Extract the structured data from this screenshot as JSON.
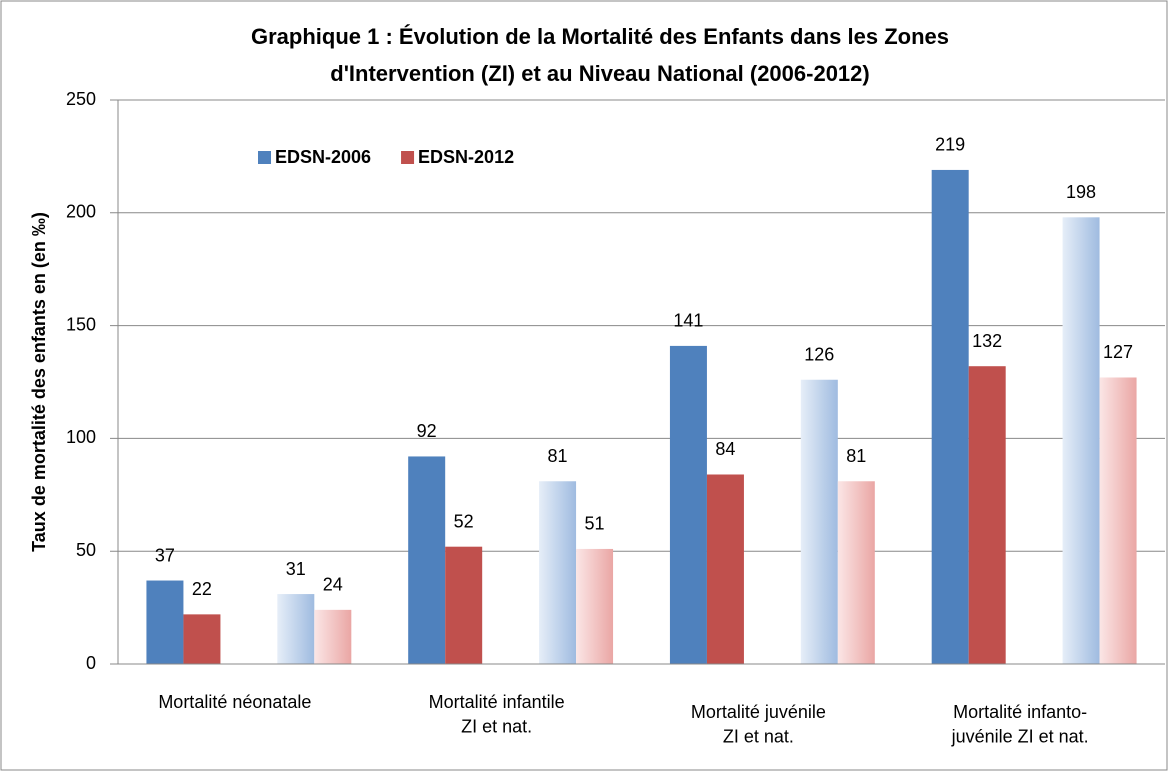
{
  "chart_data": {
    "type": "bar",
    "title": [
      "Graphique 1 : Évolution de la Mortalité des Enfants dans les Zones",
      "d'Intervention (ZI) et au Niveau National (2006-2012)"
    ],
    "y_label": "Taux de mortalité des enfants en (en ‰)",
    "categories": [
      "Mortalité néonatale",
      null,
      "Mortalité infantile\nZI et nat.",
      null,
      "Mortalité juvénile\nZI et nat.",
      null,
      "Mortalité infanto-\njuvénile ZI et nat.",
      null
    ],
    "series": [
      {
        "name": "EDSN-2006",
        "color": "#4f81bd",
        "values": [
          37,
          31,
          92,
          81,
          141,
          126,
          219,
          198
        ]
      },
      {
        "name": "EDSN-2012",
        "color": "#c0504d",
        "values": [
          22,
          24,
          52,
          51,
          84,
          81,
          132,
          127
        ]
      }
    ],
    "ylim": [
      0,
      250
    ],
    "yticks": [
      0,
      50,
      100,
      150,
      200,
      250
    ],
    "grid": true,
    "legend": "top-left"
  }
}
